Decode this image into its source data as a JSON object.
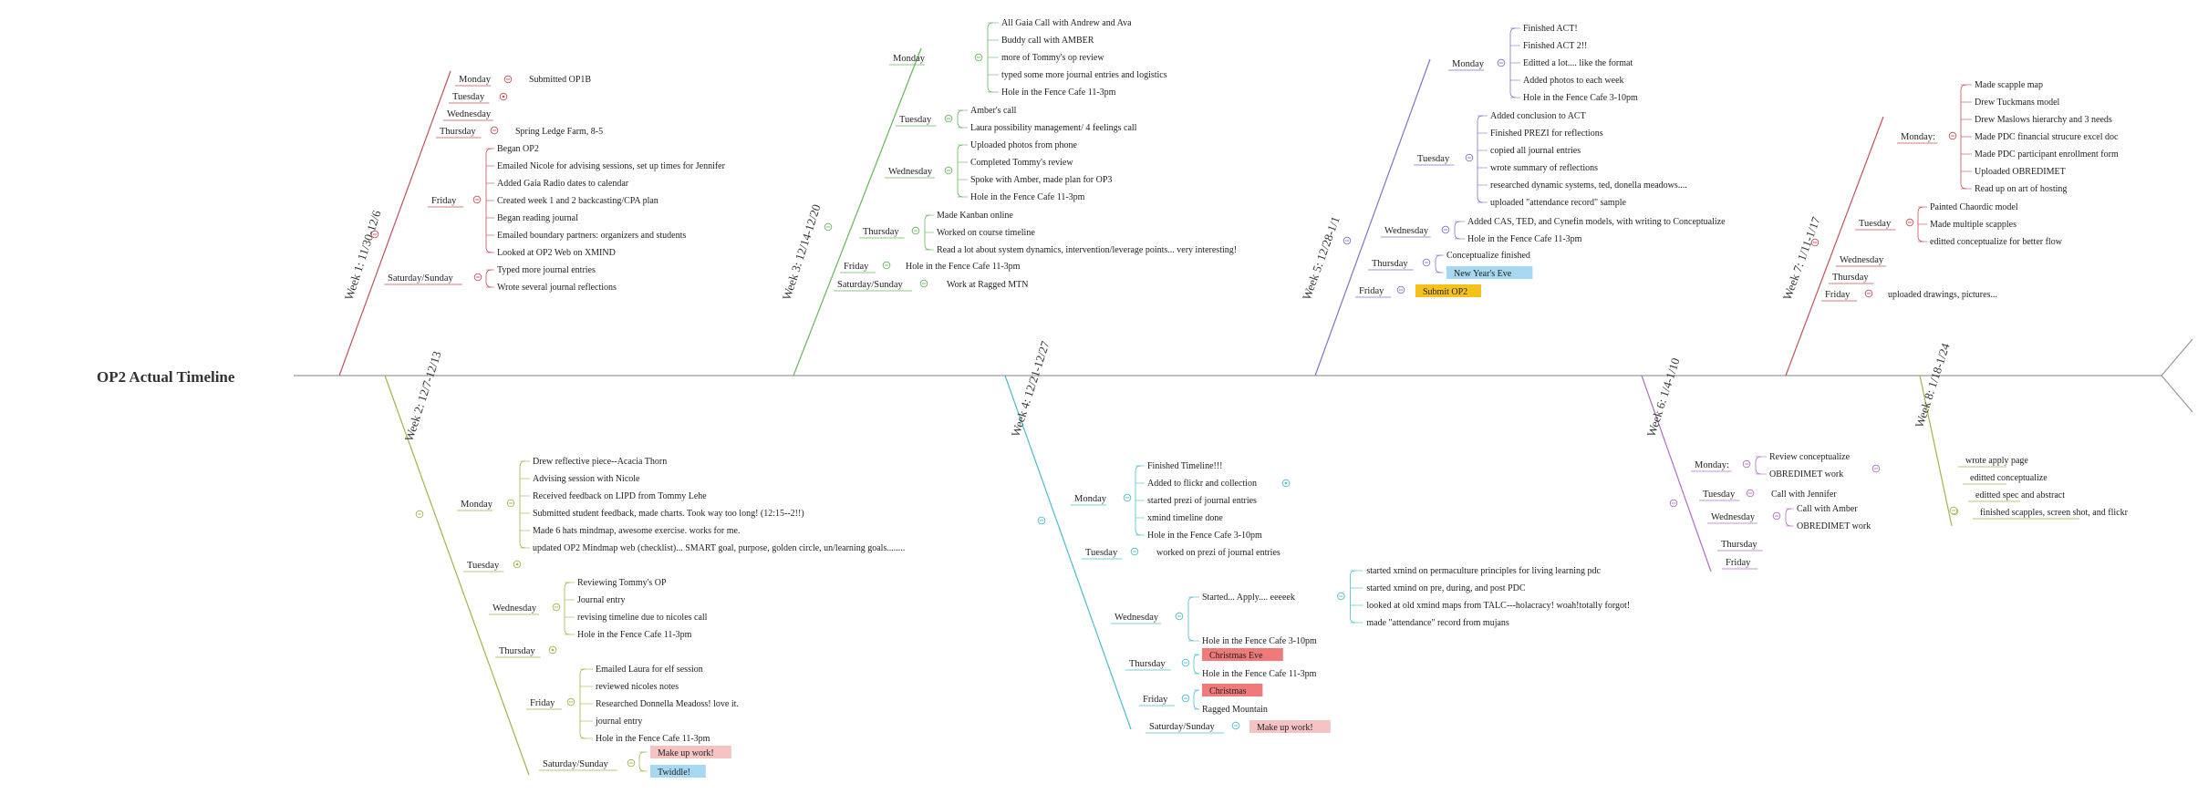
{
  "title": "OP2 Actual Timeline",
  "colors": {
    "spine": "#9a9a9a",
    "week1": "#c2505a",
    "week2": "#a3b24a",
    "week3": "#66b55c",
    "week4": "#4bbccc",
    "week5": "#7e74c8",
    "week6": "#b06ec4",
    "week7": "#c2505a",
    "week8": "#a3b24a",
    "highlight_text": "#8cbb3c",
    "link_text": "#3a9ac2",
    "tag_red": "#f07a7a",
    "tag_pink": "#f6c3c5",
    "tag_blue": "#a6d8f2",
    "tag_yellow": "#f4c21a"
  },
  "weeks": [
    {
      "label": "Week 1: 11/30-12/6",
      "color": "week1",
      "days": [
        {
          "name": "Monday",
          "items": [
            {
              "text": "Submitted OP1B"
            }
          ]
        },
        {
          "name": "Tuesday",
          "items": []
        },
        {
          "name": "Wednesday",
          "items": []
        },
        {
          "name": "Thursday",
          "items": [
            {
              "text": "Spring Ledge Farm, 8-5",
              "style": "link"
            }
          ]
        },
        {
          "name": "Friday",
          "items": [
            {
              "text": "Began OP2"
            },
            {
              "text": "Emailed Nicole for advising sessions, set up times for Jennifer"
            },
            {
              "text": "Added Gaia Radio dates to calendar"
            },
            {
              "text": "Created week 1 and 2 backcasting/CPA plan"
            },
            {
              "text": "Began reading journal"
            },
            {
              "text": "Emailed boundary partners: organizers and students"
            },
            {
              "text": "Looked at OP2 Web on XMIND"
            }
          ]
        },
        {
          "name": "Saturday/Sunday",
          "items": [
            {
              "text": "Typed more journal entries"
            },
            {
              "text": "Wrote several journal reflections"
            }
          ]
        }
      ]
    },
    {
      "label": "Week 2: 12/7-12/13",
      "color": "week2",
      "days": [
        {
          "name": "Monday",
          "items": [
            {
              "text": "Drew reflective piece--Acacia Thorn"
            },
            {
              "text": "Advising session with Nicole"
            },
            {
              "text": "Received feedback on LIPD from Tommy Lehe"
            },
            {
              "text": "Submitted student feedback, made charts. Took way too long! (12:15--2!!)"
            },
            {
              "text": "Made 6 hats mindmap, awesome exercise. works for me."
            },
            {
              "text": "updated OP2 Mindmap web (checklist)... SMART goal, purpose, golden circle, un/learning goals........"
            }
          ]
        },
        {
          "name": "Tuesday",
          "items": []
        },
        {
          "name": "Wednesday",
          "items": [
            {
              "text": "Reviewing Tommy's OP"
            },
            {
              "text": "Journal entry"
            },
            {
              "text": "revising timeline due to nicoles call"
            },
            {
              "text": "Hole in the Fence Cafe 11-3pm",
              "style": "green"
            }
          ]
        },
        {
          "name": "Thursday",
          "items": []
        },
        {
          "name": "Friday",
          "items": [
            {
              "text": "Emailed Laura for elf session"
            },
            {
              "text": "reviewed nicoles notes"
            },
            {
              "text": "Researched Donnella Meadoss! love it."
            },
            {
              "text": "journal entry"
            },
            {
              "text": "Hole in the Fence Cafe 11-3pm",
              "style": "green"
            }
          ]
        },
        {
          "name": "Saturday/Sunday",
          "items": [
            {
              "text": "Make up work!",
              "style": "tag_pink"
            },
            {
              "text": "Twiddle!",
              "style": "tag_blue"
            }
          ]
        }
      ]
    },
    {
      "label": "Week 3: 12/14-12/20",
      "color": "week3",
      "days": [
        {
          "name": "Monday",
          "items": [
            {
              "text": "All Gaia Call with Andrew and Ava"
            },
            {
              "text": "Buddy call with AMBER"
            },
            {
              "text": "more of Tommy's op review"
            },
            {
              "text": "typed some more journal entries and logistics"
            },
            {
              "text": "Hole in the Fence Cafe 11-3pm",
              "style": "green"
            }
          ]
        },
        {
          "name": "Tuesday",
          "items": [
            {
              "text": "Amber's call"
            },
            {
              "text": "Laura possibility management/ 4 feelings call"
            }
          ]
        },
        {
          "name": "Wednesday",
          "items": [
            {
              "text": "Uploaded photos from phone"
            },
            {
              "text": "Completed Tommy's review"
            },
            {
              "text": "Spoke with Amber, made plan for OP3"
            },
            {
              "text": "Hole in the Fence Cafe 11-3pm",
              "style": "green"
            }
          ]
        },
        {
          "name": "Thursday",
          "items": [
            {
              "text": "Made Kanban online"
            },
            {
              "text": "Worked on course timeline"
            },
            {
              "text": "Read a lot about system dynamics, intervention/leverage points... very interesting!"
            }
          ]
        },
        {
          "name": "Friday",
          "items": [
            {
              "text": "Hole in the Fence Cafe 11-3pm",
              "style": "green"
            }
          ]
        },
        {
          "name": "Saturday/Sunday",
          "items": [
            {
              "text": "Work at Ragged MTN"
            }
          ]
        }
      ]
    },
    {
      "label": "Week 4: 12/21-12/27",
      "color": "week4",
      "days": [
        {
          "name": "Monday",
          "items": [
            {
              "text": "Finished Timeline!!!"
            },
            {
              "text": "Added to flickr and collection"
            },
            {
              "text": "started prezi of journal entries"
            },
            {
              "text": "xmind timeline done"
            },
            {
              "text": "Hole in the Fence Cafe 3-10pm",
              "style": "green"
            }
          ]
        },
        {
          "name": "Tuesday",
          "items": [
            {
              "text": "worked on prezi of journal entries"
            }
          ]
        },
        {
          "name": "Wednesday",
          "items": [
            {
              "text": "Started... Apply.... eeeeek",
              "children": [
                "started xmind on permaculture principles for living learning pdc",
                "started xmind on pre, during, and post PDC",
                "looked at old xmind maps from TALC---holacracy! woah!totally forgot!",
                "made \"attendance\" record from mujans"
              ]
            },
            {
              "text": "Hole in the Fence Cafe 3-10pm",
              "style": "green"
            }
          ]
        },
        {
          "name": "Thursday",
          "items": [
            {
              "text": "Christmas Eve",
              "style": "tag_red"
            },
            {
              "text": "Hole in the Fence Cafe 11-3pm",
              "style": "green"
            }
          ]
        },
        {
          "name": "Friday",
          "items": [
            {
              "text": "Christmas",
              "style": "tag_red"
            },
            {
              "text": "Ragged Mountain"
            }
          ]
        },
        {
          "name": "Saturday/Sunday",
          "items": [
            {
              "text": "Make up work!",
              "style": "tag_pink"
            }
          ]
        }
      ]
    },
    {
      "label": "Week 5: 12/28-1/1",
      "color": "week5",
      "days": [
        {
          "name": "Monday",
          "items": [
            {
              "text": "Finished ACT!"
            },
            {
              "text": "Finished ACT 2!!"
            },
            {
              "text": "Editted a lot.... like the format"
            },
            {
              "text": "Added photos to each week"
            },
            {
              "text": "Hole in the Fence Cafe 3-10pm",
              "style": "green"
            }
          ]
        },
        {
          "name": "Tuesday",
          "items": [
            {
              "text": "Added conclusion to ACT"
            },
            {
              "text": "Finished PREZI for reflections"
            },
            {
              "text": "copied all journal entries"
            },
            {
              "text": "wrote summary of reflections"
            },
            {
              "text": "researched dynamic systems, ted, donella meadows...."
            },
            {
              "text": "uploaded \"attendance record\" sample"
            }
          ]
        },
        {
          "name": "Wednesday",
          "items": [
            {
              "text": "Added CAS, TED, and Cynefin models, with writing to Conceptualize"
            },
            {
              "text": "Hole in the Fence Cafe 11-3pm",
              "style": "green"
            }
          ]
        },
        {
          "name": "Thursday",
          "items": [
            {
              "text": "Conceptualize finished"
            },
            {
              "text": "New Year's Eve",
              "style": "tag_blue"
            }
          ]
        },
        {
          "name": "Friday",
          "items": [
            {
              "text": "Submit OP2",
              "style": "tag_yellow"
            }
          ]
        }
      ]
    },
    {
      "label": "Week 6: 1/4-1/10",
      "color": "week6",
      "days": [
        {
          "name": "Monday:",
          "items": [
            {
              "text": "Review conceptualize"
            },
            {
              "text": "OBREDIMET work"
            }
          ]
        },
        {
          "name": "Tuesday",
          "items": [
            {
              "text": "Call with Jennifer"
            }
          ]
        },
        {
          "name": "Wednesday",
          "items": [
            {
              "text": "Call with Amber"
            },
            {
              "text": "OBREDIMET work"
            }
          ]
        },
        {
          "name": "Thursday",
          "items": []
        },
        {
          "name": "Friday",
          "items": []
        }
      ]
    },
    {
      "label": "Week 7: 1/11-1/17",
      "color": "week7",
      "days": [
        {
          "name": "Monday:",
          "items": [
            {
              "text": "Made scapple map"
            },
            {
              "text": "Drew Tuckmans model"
            },
            {
              "text": "Drew Maslows hierarchy and 3 needs"
            },
            {
              "text": "Made PDC financial strucure excel doc"
            },
            {
              "text": "Made PDC participant enrollment form"
            },
            {
              "text": "Uploaded OBREDIMET"
            },
            {
              "text": "Read up on art of hosting"
            }
          ]
        },
        {
          "name": "Tuesday",
          "items": [
            {
              "text": "Painted Chaordic model"
            },
            {
              "text": "Made multiple scapples"
            },
            {
              "text": "editted conceptualize for better flow"
            }
          ]
        },
        {
          "name": "Wednesday",
          "items": []
        },
        {
          "name": "Thursday",
          "items": []
        },
        {
          "name": "Friday",
          "items": [
            {
              "text": "uploaded drawings, pictures..."
            }
          ]
        }
      ]
    },
    {
      "label": "Week 8: 1/18-1/24",
      "color": "week8",
      "days": [
        {
          "name": "",
          "items": [
            {
              "text": "wrote apply page"
            },
            {
              "text": "editted conceptualize"
            },
            {
              "text": "editted spec and abstract"
            },
            {
              "text": "finished scapples, screen shot, and flickr"
            }
          ]
        }
      ]
    }
  ]
}
